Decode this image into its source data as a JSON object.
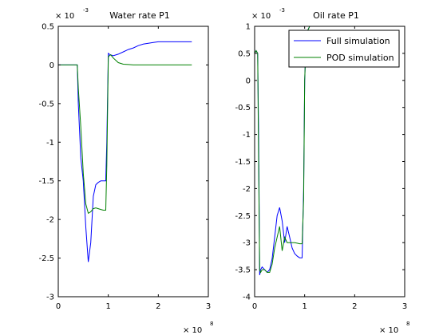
{
  "legend": {
    "entries": [
      {
        "label": "Full simulation",
        "color": "#0000ff"
      },
      {
        "label": "POD simulation",
        "color": "#008000"
      }
    ],
    "placement": "top-right of right chart"
  },
  "chart_data": [
    {
      "type": "line",
      "title": "Water rate P1",
      "xlabel": "",
      "ylabel": "",
      "x_multiplier": {
        "base": "× 10",
        "exp": "8"
      },
      "y_multiplier": {
        "base": "× 10",
        "exp": "-3"
      },
      "xlim": [
        0,
        3
      ],
      "ylim": [
        -3,
        0.5
      ],
      "xticks": [
        0,
        1,
        2,
        3
      ],
      "xtick_labels": [
        "0",
        "1",
        "2",
        "3"
      ],
      "yticks": [
        0.5,
        0,
        -0.5,
        -1,
        -1.5,
        -2,
        -2.5,
        -3
      ],
      "ytick_labels": [
        "0.5",
        "0",
        "-0.5",
        "-1",
        "-1.5",
        "-2",
        "-2.5",
        "-3"
      ],
      "grid": false,
      "series": [
        {
          "name": "Full simulation",
          "color": "#0000ff",
          "x": [
            0,
            0.1,
            0.2,
            0.3,
            0.38,
            0.4,
            0.45,
            0.5,
            0.55,
            0.6,
            0.65,
            0.7,
            0.75,
            0.8,
            0.85,
            0.9,
            0.95,
            0.97,
            1.0,
            1.02,
            1.05,
            1.1,
            1.2,
            1.3,
            1.4,
            1.5,
            1.6,
            1.7,
            1.8,
            1.9,
            2.0,
            2.2,
            2.4,
            2.67
          ],
          "y": [
            0,
            0,
            0,
            0,
            0,
            -0.5,
            -1.2,
            -1.5,
            -2.1,
            -2.55,
            -2.3,
            -1.7,
            -1.55,
            -1.52,
            -1.5,
            -1.5,
            -1.5,
            -1.0,
            0.15,
            0.14,
            0.13,
            0.12,
            0.14,
            0.17,
            0.2,
            0.22,
            0.25,
            0.27,
            0.28,
            0.29,
            0.3,
            0.3,
            0.3,
            0.3
          ]
        },
        {
          "name": "POD simulation",
          "color": "#008000",
          "x": [
            0,
            0.1,
            0.2,
            0.3,
            0.38,
            0.4,
            0.45,
            0.5,
            0.55,
            0.6,
            0.65,
            0.7,
            0.75,
            0.8,
            0.85,
            0.9,
            0.95,
            0.97,
            1.0,
            1.02,
            1.05,
            1.1,
            1.2,
            1.3,
            1.4,
            1.5,
            2.0,
            2.5,
            2.67
          ],
          "y": [
            0,
            0,
            0,
            0,
            0,
            -0.3,
            -0.8,
            -1.4,
            -1.8,
            -1.92,
            -1.9,
            -1.86,
            -1.85,
            -1.86,
            -1.87,
            -1.88,
            -1.88,
            -1.3,
            0.1,
            0.12,
            0.13,
            0.09,
            0.03,
            0.01,
            0.005,
            0,
            0,
            0,
            0
          ]
        }
      ]
    },
    {
      "type": "line",
      "title": "Oil rate P1",
      "xlabel": "",
      "ylabel": "",
      "x_multiplier": {
        "base": "× 10",
        "exp": "8"
      },
      "y_multiplier": {
        "base": "× 10",
        "exp": "-3"
      },
      "xlim": [
        0,
        3
      ],
      "ylim": [
        -4,
        1
      ],
      "xticks": [
        0,
        1,
        2,
        3
      ],
      "xtick_labels": [
        "0",
        "1",
        "2",
        "3"
      ],
      "yticks": [
        1,
        0.5,
        0,
        -0.5,
        -1,
        -1.5,
        -2,
        -2.5,
        -3,
        -3.5,
        -4
      ],
      "ytick_labels": [
        "1",
        "0.5",
        "0",
        "-0.5",
        "-1",
        "-1.5",
        "-2",
        "-2.5",
        "-3",
        "-3.5",
        "-4"
      ],
      "grid": false,
      "series": [
        {
          "name": "Full simulation",
          "color": "#0000ff",
          "x": [
            0,
            0.03,
            0.06,
            0.08,
            0.1,
            0.12,
            0.15,
            0.2,
            0.25,
            0.3,
            0.35,
            0.4,
            0.45,
            0.5,
            0.55,
            0.6,
            0.65,
            0.7,
            0.75,
            0.8,
            0.85,
            0.9,
            0.95,
            0.98,
            1.0,
            1.02,
            1.05,
            1.1,
            1.2
          ],
          "y": [
            0.5,
            0.55,
            0.5,
            -1.0,
            -3.6,
            -3.5,
            -3.45,
            -3.5,
            -3.55,
            -3.5,
            -3.3,
            -2.9,
            -2.5,
            -2.35,
            -2.6,
            -3.0,
            -2.7,
            -2.9,
            -3.1,
            -3.2,
            -3.25,
            -3.28,
            -3.28,
            -2.0,
            0.0,
            0.5,
            0.9,
            1.0,
            1.0
          ]
        },
        {
          "name": "POD simulation",
          "color": "#008000",
          "x": [
            0,
            0.03,
            0.06,
            0.08,
            0.1,
            0.12,
            0.15,
            0.2,
            0.25,
            0.3,
            0.35,
            0.4,
            0.45,
            0.5,
            0.55,
            0.6,
            0.65,
            0.7,
            0.75,
            0.8,
            0.85,
            0.9,
            0.95,
            0.98,
            1.0,
            1.02,
            1.05,
            1.1,
            1.2
          ],
          "y": [
            0.5,
            0.55,
            0.5,
            -1.5,
            -3.5,
            -3.55,
            -3.5,
            -3.5,
            -3.55,
            -3.55,
            -3.4,
            -3.1,
            -2.9,
            -2.7,
            -3.15,
            -2.9,
            -3.0,
            -3.0,
            -3.0,
            -3.0,
            -3.01,
            -3.02,
            -3.02,
            -2.2,
            0.0,
            0.5,
            0.9,
            1.0,
            1.0
          ]
        }
      ]
    }
  ]
}
